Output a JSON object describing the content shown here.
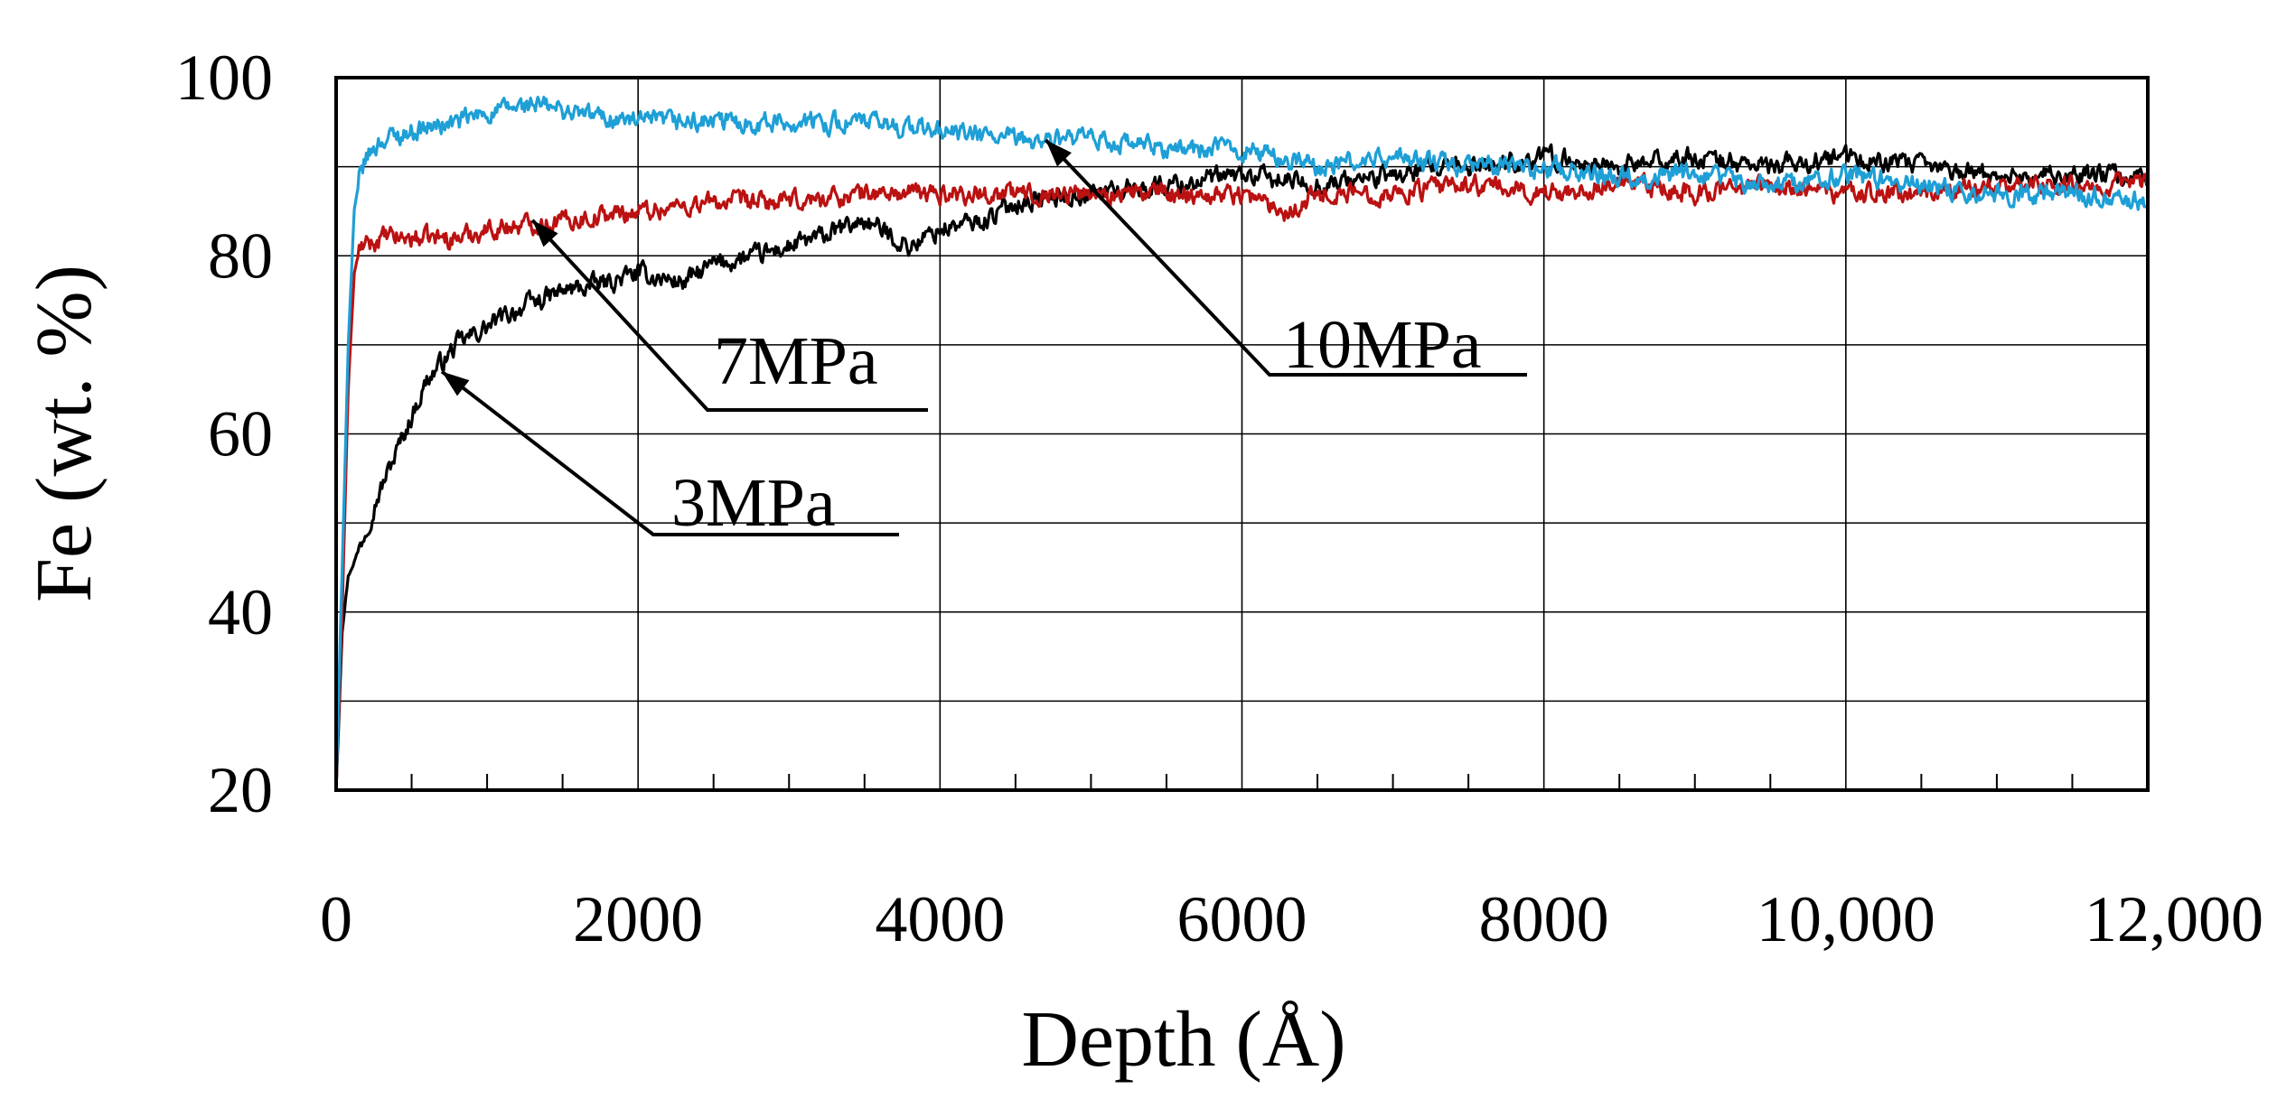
{
  "chart_data": {
    "type": "line",
    "title": "",
    "xlabel": "Depth  (Å)",
    "ylabel": "Fe (wt. %)",
    "xlim": [
      0,
      12000
    ],
    "ylim": [
      20,
      100
    ],
    "x_ticks": [
      0,
      2000,
      4000,
      6000,
      8000,
      10000,
      12000
    ],
    "x_tick_labels": [
      "0",
      "2000",
      "4000",
      "6000",
      "8000",
      "10,000",
      "12,000"
    ],
    "x_minor_step": 500,
    "y_ticks": [
      20,
      40,
      60,
      80,
      100
    ],
    "y_tick_labels": [
      "20",
      "40",
      "60",
      "80",
      "100"
    ],
    "y_grid_step": 10,
    "grid": true,
    "legend": "none",
    "series": [
      {
        "name": "3MPa",
        "color": "#000000",
        "x": [
          0,
          40,
          80,
          150,
          250,
          400,
          600,
          800,
          1000,
          1200,
          1500,
          1800,
          2000,
          2300,
          2500,
          2800,
          3000,
          3200,
          3500,
          3800,
          4000,
          4300,
          4500,
          5000,
          5500,
          6000,
          6500,
          7000,
          7500,
          8000,
          8500,
          9000,
          9500,
          10000,
          10500,
          11000,
          11500,
          12000
        ],
        "y": [
          20,
          38,
          44,
          47,
          52,
          58,
          66,
          70,
          72,
          74,
          76,
          77,
          78,
          77,
          79,
          80,
          81,
          82,
          84,
          81,
          83,
          84,
          86,
          87,
          88,
          89,
          88,
          89,
          90,
          91,
          90,
          91,
          90,
          91,
          90,
          89,
          89,
          89
        ]
      },
      {
        "name": "7MPa",
        "color": "#bb1111",
        "x": [
          0,
          40,
          80,
          120,
          160,
          200,
          300,
          500,
          800,
          1000,
          1500,
          2000,
          2500,
          3000,
          3500,
          4000,
          4500,
          5000,
          5500,
          6000,
          6300,
          6500,
          7000,
          7500,
          8000,
          8500,
          9000,
          9500,
          10000,
          10500,
          11000,
          11500,
          12000
        ],
        "y": [
          20,
          40,
          65,
          78,
          81,
          81,
          82,
          82,
          82,
          83,
          84,
          85,
          86,
          86,
          87,
          87,
          87,
          87,
          87,
          87,
          85,
          87,
          87,
          88,
          87,
          88,
          87,
          88,
          87,
          87,
          88,
          88,
          88
        ]
      },
      {
        "name": "10MPa",
        "color": "#1e9fd6",
        "x": [
          0,
          40,
          80,
          120,
          160,
          200,
          300,
          500,
          800,
          1000,
          1300,
          1600,
          2000,
          2500,
          3000,
          3500,
          4000,
          4500,
          5000,
          5500,
          6000,
          6500,
          7000,
          7500,
          8000,
          8500,
          9000,
          9500,
          10000,
          10500,
          11000,
          11500,
          12000
        ],
        "y": [
          20,
          45,
          70,
          85,
          89,
          91,
          93,
          94,
          95,
          96,
          97,
          96,
          95,
          95,
          95,
          95,
          94,
          93,
          93,
          92,
          92,
          90,
          91,
          90,
          90,
          89,
          89,
          88,
          89,
          88,
          87,
          87,
          86
        ]
      }
    ],
    "annotations": [
      {
        "label": "3MPa",
        "series": "3MPa",
        "arrow_to": [
          700,
          67
        ]
      },
      {
        "label": "7MPa",
        "series": "7MPa",
        "arrow_to": [
          1300,
          84
        ]
      },
      {
        "label": "10MPa",
        "series": "10MPa",
        "arrow_to": [
          4700,
          93
        ]
      }
    ]
  }
}
